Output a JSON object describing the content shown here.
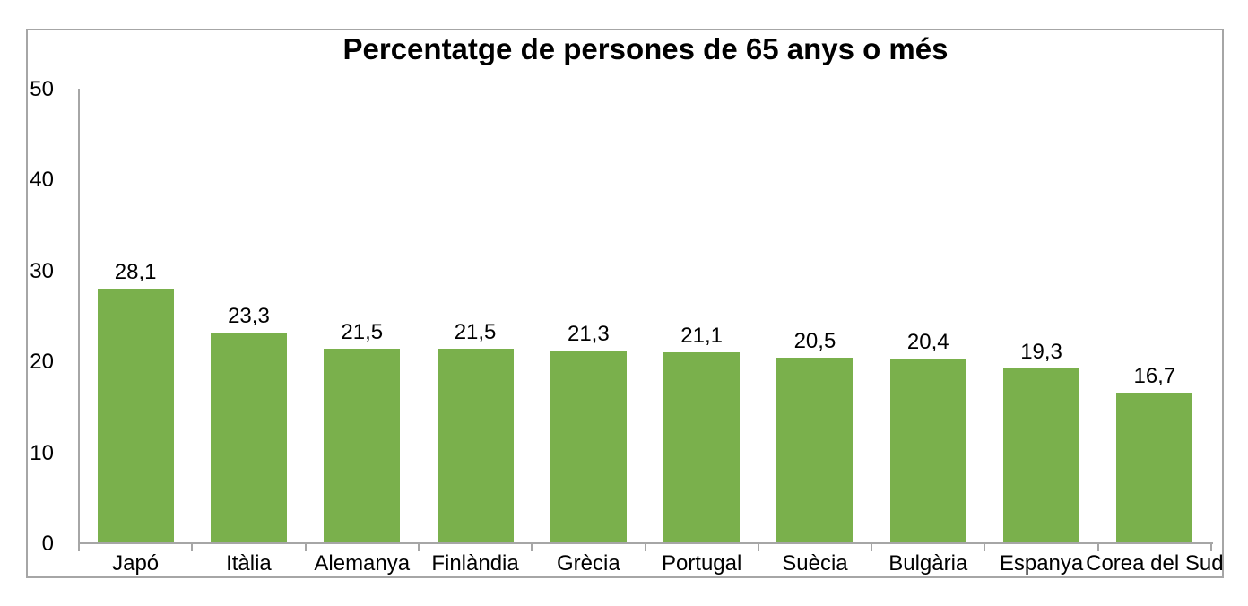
{
  "chart_data": {
    "type": "bar",
    "title": "Percentatge de persones de 65 anys o més",
    "categories": [
      "Japó",
      "Itàlia",
      "Alemanya",
      "Finlàndia",
      "Grècia",
      "Portugal",
      "Suècia",
      "Bulgària",
      "Espanya",
      "Corea del Sud"
    ],
    "values": [
      28.1,
      23.3,
      21.5,
      21.5,
      21.3,
      21.1,
      20.5,
      20.4,
      19.3,
      16.7
    ],
    "value_labels": [
      "28,1",
      "23,3",
      "21,5",
      "21,5",
      "21,3",
      "21,1",
      "20,5",
      "20,4",
      "19,3",
      "16,7"
    ],
    "xlabel": "",
    "ylabel": "",
    "ylim": [
      0,
      50
    ],
    "yticks": [
      0,
      10,
      20,
      30,
      40,
      50
    ],
    "ytick_labels": [
      "0",
      "10",
      "20",
      "30",
      "40",
      "50"
    ],
    "grid": false,
    "legend": false,
    "bar_color": "#7AB04C",
    "axis_color": "#A6A6A6",
    "frame_color": "#A6A6A6",
    "text_color": "#000000",
    "background_color": "#FFFFFF"
  }
}
